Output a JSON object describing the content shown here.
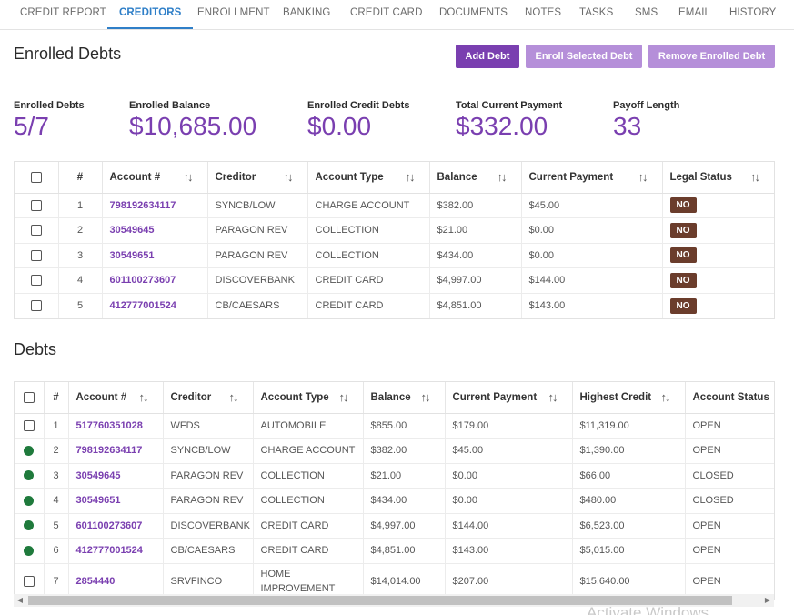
{
  "tabs": [
    "CREDIT REPORT",
    "CREDITORS",
    "ENROLLMENT",
    "BANKING",
    "CREDIT CARD",
    "DOCUMENTS",
    "NOTES",
    "TASKS",
    "SMS",
    "EMAIL",
    "HISTORY"
  ],
  "active_tab": "CREDITORS",
  "enrolled": {
    "title": "Enrolled Debts",
    "buttons": {
      "add": "Add Debt",
      "enroll": "Enroll Selected Debt",
      "remove": "Remove Enrolled Debt"
    },
    "stats": [
      {
        "label": "Enrolled Debts",
        "value": "5/7"
      },
      {
        "label": "Enrolled Balance",
        "value": "$10,685.00"
      },
      {
        "label": "Enrolled Credit Debts",
        "value": "$0.00"
      },
      {
        "label": "Total Current Payment",
        "value": "$332.00"
      },
      {
        "label": "Payoff Length",
        "value": "33"
      }
    ],
    "columns": [
      "#",
      "Account #",
      "Creditor",
      "Account Type",
      "Balance",
      "Current Payment",
      "Legal Status"
    ],
    "rows": [
      {
        "n": "1",
        "account": "798192634117",
        "creditor": "SYNCB/LOW",
        "type": "CHARGE ACCOUNT",
        "balance": "$382.00",
        "payment": "$45.00",
        "legal": "NO"
      },
      {
        "n": "2",
        "account": "30549645",
        "creditor": "PARAGON REV",
        "type": "COLLECTION",
        "balance": "$21.00",
        "payment": "$0.00",
        "legal": "NO"
      },
      {
        "n": "3",
        "account": "30549651",
        "creditor": "PARAGON REV",
        "type": "COLLECTION",
        "balance": "$434.00",
        "payment": "$0.00",
        "legal": "NO"
      },
      {
        "n": "4",
        "account": "601100273607",
        "creditor": "DISCOVERBANK",
        "type": "CREDIT CARD",
        "balance": "$4,997.00",
        "payment": "$144.00",
        "legal": "NO"
      },
      {
        "n": "5",
        "account": "412777001524",
        "creditor": "CB/CAESARS",
        "type": "CREDIT CARD",
        "balance": "$4,851.00",
        "payment": "$143.00",
        "legal": "NO"
      }
    ]
  },
  "debts": {
    "title": "Debts",
    "columns": [
      "#",
      "Account #",
      "Creditor",
      "Account Type",
      "Balance",
      "Current Payment",
      "Highest Credit",
      "Account Status"
    ],
    "rows": [
      {
        "n": "1",
        "account": "517760351028",
        "creditor": "WFDS",
        "type": "AUTOMOBILE",
        "balance": "$855.00",
        "payment": "$179.00",
        "highest": "$11,319.00",
        "status": "OPEN",
        "enrolled": false
      },
      {
        "n": "2",
        "account": "798192634117",
        "creditor": "SYNCB/LOW",
        "type": "CHARGE ACCOUNT",
        "balance": "$382.00",
        "payment": "$45.00",
        "highest": "$1,390.00",
        "status": "OPEN",
        "enrolled": true
      },
      {
        "n": "3",
        "account": "30549645",
        "creditor": "PARAGON REV",
        "type": "COLLECTION",
        "balance": "$21.00",
        "payment": "$0.00",
        "highest": "$66.00",
        "status": "CLOSED",
        "enrolled": true
      },
      {
        "n": "4",
        "account": "30549651",
        "creditor": "PARAGON REV",
        "type": "COLLECTION",
        "balance": "$434.00",
        "payment": "$0.00",
        "highest": "$480.00",
        "status": "CLOSED",
        "enrolled": true
      },
      {
        "n": "5",
        "account": "601100273607",
        "creditor": "DISCOVERBANK",
        "type": "CREDIT CARD",
        "balance": "$4,997.00",
        "payment": "$144.00",
        "highest": "$6,523.00",
        "status": "OPEN",
        "enrolled": true
      },
      {
        "n": "6",
        "account": "412777001524",
        "creditor": "CB/CAESARS",
        "type": "CREDIT CARD",
        "balance": "$4,851.00",
        "payment": "$143.00",
        "highest": "$5,015.00",
        "status": "OPEN",
        "enrolled": true
      },
      {
        "n": "7",
        "account": "2854440",
        "creditor": "SRVFINCO",
        "type": "HOME IMPROVEMENT",
        "balance": "$14,014.00",
        "payment": "$207.00",
        "highest": "$15,640.00",
        "status": "OPEN",
        "enrolled": false
      }
    ]
  },
  "watermark": "Activate Windows",
  "colors": {
    "accent": "#7a3fb0",
    "tab_active": "#2f7fc8",
    "badge": "#6b3d2c",
    "enrolled_dot": "#1f7a3c"
  }
}
